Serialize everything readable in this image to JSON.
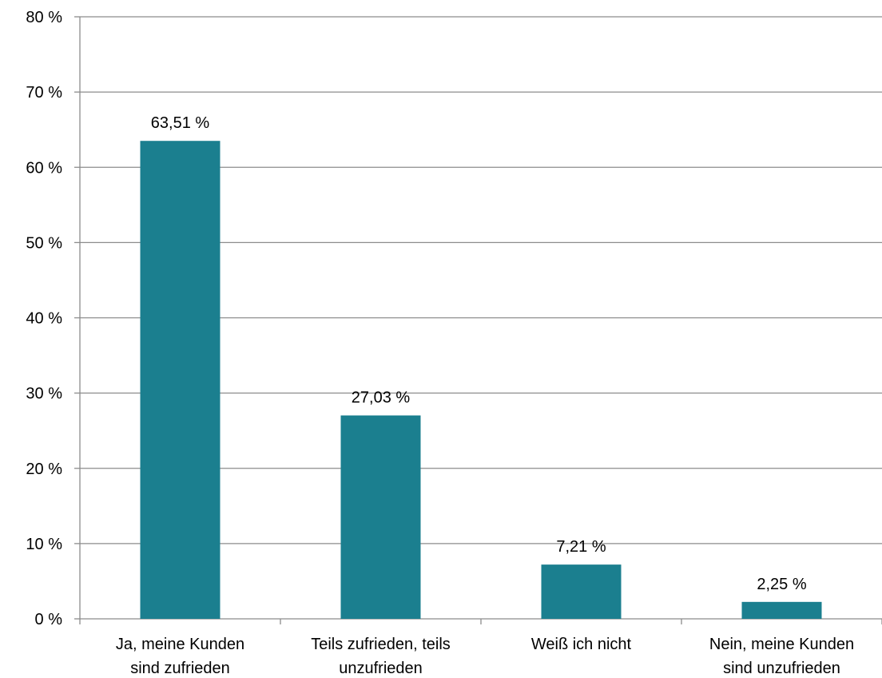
{
  "chart_data": {
    "type": "bar",
    "categories": [
      [
        "Ja, meine Kunden",
        "sind zufrieden"
      ],
      [
        "Teils zufrieden, teils",
        "unzufrieden"
      ],
      [
        "Weiß ich nicht"
      ],
      [
        "Nein, meine Kunden",
        "sind unzufrieden"
      ]
    ],
    "values": [
      63.51,
      27.03,
      7.21,
      2.25
    ],
    "data_labels": [
      "63,51 %",
      "27,03 %",
      "7,21 %",
      "2,25 %"
    ],
    "y_ticks": [
      {
        "value": 0,
        "label": "0 %"
      },
      {
        "value": 10,
        "label": "10 %"
      },
      {
        "value": 20,
        "label": "20 %"
      },
      {
        "value": 30,
        "label": "30 %"
      },
      {
        "value": 40,
        "label": "40 %"
      },
      {
        "value": 50,
        "label": "50 %"
      },
      {
        "value": 60,
        "label": "60 %"
      },
      {
        "value": 70,
        "label": "70 %"
      },
      {
        "value": 80,
        "label": "80 %"
      }
    ],
    "ylim": [
      0,
      80
    ],
    "grid": true,
    "legend": "none",
    "bar_color": "#1b7f8f",
    "grid_color": "#8c8c8c",
    "axis_color": "#8c8c8c"
  }
}
